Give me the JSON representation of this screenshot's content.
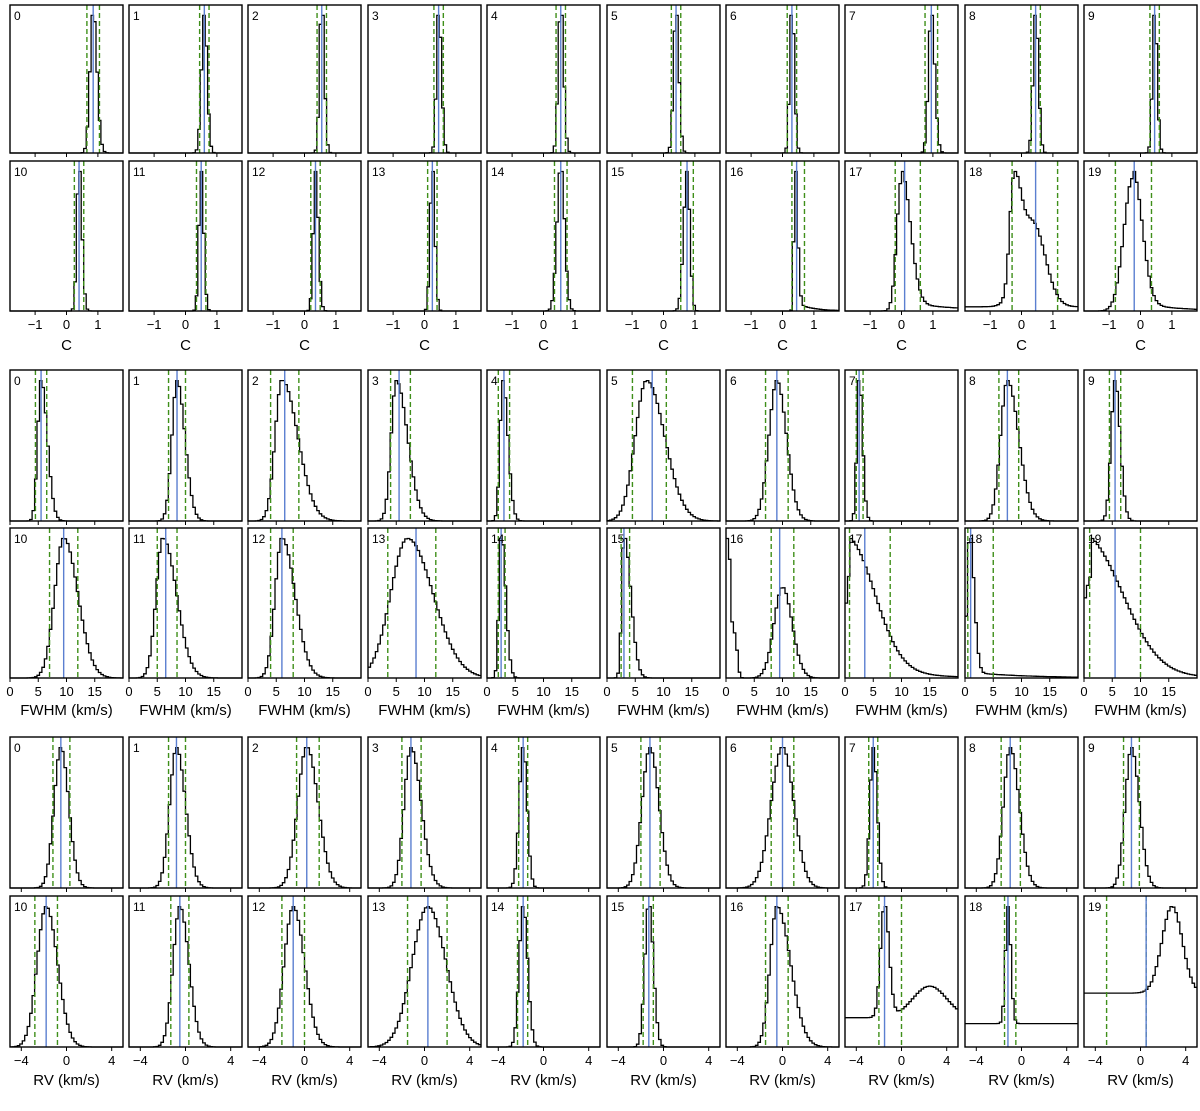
{
  "chart_data": [
    {
      "type": "histogram-grid",
      "xlabel": "C",
      "xlim": [
        -1.8,
        1.8
      ],
      "xticks": [
        -1,
        0,
        1
      ],
      "xtick_labels": [
        "−1",
        "0",
        "1"
      ],
      "shape_params": [
        [
          0.85,
          0.1,
          0.12,
          0,
          0
        ],
        [
          0.6,
          0.09,
          0.09,
          0,
          0
        ],
        [
          0.55,
          0.07,
          0.08,
          0,
          0
        ],
        [
          0.45,
          0.07,
          0.09,
          0,
          0
        ],
        [
          0.55,
          0.08,
          0.09,
          0,
          0
        ],
        [
          0.4,
          0.08,
          0.09,
          0,
          0
        ],
        [
          0.3,
          0.07,
          0.08,
          0,
          0
        ],
        [
          0.95,
          0.09,
          0.11,
          0,
          0
        ],
        [
          0.45,
          0.08,
          0.09,
          0,
          0
        ],
        [
          0.45,
          0.07,
          0.08,
          0,
          0
        ],
        [
          0.4,
          0.07,
          0.09,
          0,
          0
        ],
        [
          0.5,
          0.07,
          0.08,
          0,
          0
        ],
        [
          0.35,
          0.07,
          0.09,
          0,
          0
        ],
        [
          0.25,
          0.07,
          0.08,
          0,
          0
        ],
        [
          0.55,
          0.12,
          0.12,
          0,
          0
        ],
        [
          0.75,
          0.11,
          0.09,
          0,
          0
        ],
        [
          0.4,
          0.04,
          0.08,
          0.06,
          0.5
        ],
        [
          0,
          0.15,
          0.28,
          0.07,
          1.6
        ],
        [
          -0.25,
          0.13,
          0.22,
          0,
          0,
          0.8,
          0.35,
          0.4,
          0.04,
          1.8
        ],
        [
          -0.25,
          0.28,
          0.3,
          0.07,
          1.2
        ]
      ],
      "panels": [
        {
          "label": "0",
          "median": 0.85,
          "lower": 0.65,
          "upper": 1.05
        },
        {
          "label": "1",
          "median": 0.6,
          "lower": 0.45,
          "upper": 0.75
        },
        {
          "label": "2",
          "median": 0.55,
          "lower": 0.4,
          "upper": 0.7
        },
        {
          "label": "3",
          "median": 0.45,
          "lower": 0.3,
          "upper": 0.6
        },
        {
          "label": "4",
          "median": 0.55,
          "lower": 0.4,
          "upper": 0.7
        },
        {
          "label": "5",
          "median": 0.4,
          "lower": 0.25,
          "upper": 0.55
        },
        {
          "label": "6",
          "median": 0.3,
          "lower": 0.15,
          "upper": 0.45
        },
        {
          "label": "7",
          "median": 0.95,
          "lower": 0.75,
          "upper": 1.15
        },
        {
          "label": "8",
          "median": 0.45,
          "lower": 0.3,
          "upper": 0.6
        },
        {
          "label": "9",
          "median": 0.45,
          "lower": 0.3,
          "upper": 0.6
        },
        {
          "label": "10",
          "median": 0.4,
          "lower": 0.25,
          "upper": 0.55
        },
        {
          "label": "11",
          "median": 0.5,
          "lower": 0.35,
          "upper": 0.65
        },
        {
          "label": "12",
          "median": 0.35,
          "lower": 0.2,
          "upper": 0.5
        },
        {
          "label": "13",
          "median": 0.25,
          "lower": 0.1,
          "upper": 0.4
        },
        {
          "label": "14",
          "median": 0.55,
          "lower": 0.35,
          "upper": 0.75
        },
        {
          "label": "15",
          "median": 0.75,
          "lower": 0.55,
          "upper": 0.95
        },
        {
          "label": "16",
          "median": 0.45,
          "lower": 0.3,
          "upper": 0.7
        },
        {
          "label": "17",
          "median": 0.1,
          "lower": -0.2,
          "upper": 0.6
        },
        {
          "label": "18",
          "median": 0.45,
          "lower": -0.3,
          "upper": 1.15
        },
        {
          "label": "19",
          "median": -0.2,
          "lower": -0.8,
          "upper": 0.35
        }
      ]
    },
    {
      "type": "histogram-grid",
      "xlabel": "FWHM (km/s)",
      "xlim": [
        0,
        20
      ],
      "xticks": [
        0,
        5,
        10,
        15
      ],
      "xtick_labels": [
        "0",
        "5",
        "10",
        "15"
      ],
      "shape_params": [
        [
          5.5,
          0.6,
          1.1,
          0,
          0
        ],
        [
          8.5,
          0.9,
          1.4,
          0,
          0
        ],
        [
          6,
          1.2,
          2.8,
          0,
          0
        ],
        [
          5,
          0.9,
          2.0,
          0,
          0
        ],
        [
          2.8,
          0.5,
          0.9,
          0,
          0
        ],
        [
          7,
          2.0,
          3.2,
          0,
          0
        ],
        [
          9,
          1.4,
          1.7,
          0,
          0
        ],
        [
          2.5,
          0.4,
          0.6,
          0,
          0
        ],
        [
          7.5,
          1.2,
          2.0,
          0,
          0
        ],
        [
          5.5,
          0.7,
          0.9,
          0,
          0
        ],
        [
          9.5,
          1.6,
          2.5,
          0,
          0
        ],
        [
          6,
          1.2,
          2.4,
          0,
          0
        ],
        [
          6,
          1.2,
          2.3,
          0,
          0
        ],
        [
          7,
          3.0,
          4.5,
          0,
          0
        ],
        [
          2.5,
          0.4,
          0.8,
          0,
          0
        ],
        [
          3,
          0.4,
          1.2,
          0,
          0
        ],
        [
          10,
          1.5,
          1.7,
          0,
          0,
          1.6,
          0.35,
          0.45,
          0,
          0,
          0.45
        ],
        [
          1.0,
          0.9,
          4.5,
          0.28,
          6
        ],
        [
          0.8,
          0.45,
          0.8,
          0.04,
          10
        ],
        [
          1.5,
          1.8,
          6,
          0.35,
          6
        ]
      ],
      "panels": [
        {
          "label": "0",
          "median": 5.5,
          "lower": 4.5,
          "upper": 6.5
        },
        {
          "label": "1",
          "median": 8.5,
          "lower": 7.0,
          "upper": 10.0
        },
        {
          "label": "2",
          "median": 6.5,
          "lower": 4.0,
          "upper": 9.0
        },
        {
          "label": "3",
          "median": 5.5,
          "lower": 4.0,
          "upper": 7.5
        },
        {
          "label": "4",
          "median": 3.0,
          "lower": 2.0,
          "upper": 4.0
        },
        {
          "label": "5",
          "median": 8.0,
          "lower": 4.5,
          "upper": 10.5
        },
        {
          "label": "6",
          "median": 9.0,
          "lower": 7.0,
          "upper": 11.0
        },
        {
          "label": "7",
          "median": 2.5,
          "lower": 2.0,
          "upper": 3.2
        },
        {
          "label": "8",
          "median": 7.5,
          "lower": 6.0,
          "upper": 9.5
        },
        {
          "label": "9",
          "median": 5.5,
          "lower": 4.5,
          "upper": 6.5
        },
        {
          "label": "10",
          "median": 9.5,
          "lower": 7.0,
          "upper": 12.0
        },
        {
          "label": "11",
          "median": 6.5,
          "lower": 5.0,
          "upper": 8.5
        },
        {
          "label": "12",
          "median": 6.0,
          "lower": 4.0,
          "upper": 8.0
        },
        {
          "label": "13",
          "median": 8.5,
          "lower": 3.5,
          "upper": 12.0
        },
        {
          "label": "14",
          "median": 2.5,
          "lower": 2.0,
          "upper": 3.2
        },
        {
          "label": "15",
          "median": 3.0,
          "lower": 2.5,
          "upper": 4.0
        },
        {
          "label": "16",
          "median": 9.5,
          "lower": 8.0,
          "upper": 12.0
        },
        {
          "label": "17",
          "median": 3.5,
          "lower": 0.8,
          "upper": 8.0
        },
        {
          "label": "18",
          "median": 1.0,
          "lower": 0.5,
          "upper": 5.0
        },
        {
          "label": "19",
          "median": 5.5,
          "lower": 1.0,
          "upper": 10.0
        }
      ]
    },
    {
      "type": "histogram-grid",
      "xlabel": "RV (km/s)",
      "xlim": [
        -5,
        5
      ],
      "xticks": [
        -4,
        0,
        4
      ],
      "xtick_labels": [
        "−4",
        "0",
        "4"
      ],
      "shape_params": [
        [
          -0.5,
          0.6,
          0.7,
          0,
          0
        ],
        [
          -0.8,
          0.6,
          0.8,
          0,
          0
        ],
        [
          0.2,
          0.8,
          1.0,
          0,
          0
        ],
        [
          -1.2,
          0.6,
          0.9,
          0,
          0
        ],
        [
          -1.8,
          0.35,
          0.35,
          0,
          0
        ],
        [
          -1.2,
          0.7,
          0.8,
          0,
          0
        ],
        [
          0,
          1.0,
          1.0,
          0,
          0
        ],
        [
          -2.5,
          0.3,
          0.35,
          0.01,
          0.2
        ],
        [
          -1,
          0.6,
          0.8,
          0,
          0
        ],
        [
          -0.8,
          0.55,
          0.7,
          0,
          0
        ],
        [
          -1.8,
          0.8,
          1.0,
          0,
          0
        ],
        [
          -0.5,
          0.6,
          0.8,
          0,
          0
        ],
        [
          -1,
          0.8,
          1.0,
          0,
          0
        ],
        [
          0.3,
          1.4,
          1.6,
          0,
          0
        ],
        [
          -1.8,
          0.35,
          0.4,
          0,
          0
        ],
        [
          -1.3,
          0.35,
          0.4,
          0,
          0
        ],
        [
          -0.5,
          0.6,
          1.2,
          0,
          0
        ],
        [
          -1.5,
          0.35,
          0.4,
          0.2,
          0,
          0.28,
          2.5,
          1.5,
          0.06,
          0
        ],
        [
          -1.2,
          0.22,
          0.25,
          0.15,
          0,
          0,
          0,
          0,
          0.05,
          0
        ],
        [
          2.8,
          0.9,
          0.9,
          0,
          0,
          0.6,
          0,
          0,
          0.62,
          0
        ]
      ],
      "panels": [
        {
          "label": "0",
          "median": -0.5,
          "lower": -1.2,
          "upper": 0.3
        },
        {
          "label": "1",
          "median": -0.8,
          "lower": -1.5,
          "upper": 0.0
        },
        {
          "label": "2",
          "median": 0.2,
          "lower": -0.7,
          "upper": 1.3
        },
        {
          "label": "3",
          "median": -1.2,
          "lower": -2.0,
          "upper": -0.3
        },
        {
          "label": "4",
          "median": -1.8,
          "lower": -2.2,
          "upper": -1.4
        },
        {
          "label": "5",
          "median": -1.2,
          "lower": -2.0,
          "upper": -0.3
        },
        {
          "label": "6",
          "median": 0.0,
          "lower": -1.0,
          "upper": 1.0
        },
        {
          "label": "7",
          "median": -2.5,
          "lower": -2.9,
          "upper": -2.1
        },
        {
          "label": "8",
          "median": -1.0,
          "lower": -1.8,
          "upper": -0.1
        },
        {
          "label": "9",
          "median": -0.8,
          "lower": -1.5,
          "upper": -0.1
        },
        {
          "label": "10",
          "median": -1.8,
          "lower": -2.8,
          "upper": -0.8
        },
        {
          "label": "11",
          "median": -0.5,
          "lower": -1.3,
          "upper": 0.3
        },
        {
          "label": "12",
          "median": -1.0,
          "lower": -2.0,
          "upper": 0.0
        },
        {
          "label": "13",
          "median": 0.3,
          "lower": -1.5,
          "upper": 2.0
        },
        {
          "label": "14",
          "median": -1.8,
          "lower": -2.3,
          "upper": -1.4
        },
        {
          "label": "15",
          "median": -1.3,
          "lower": -1.8,
          "upper": -0.9
        },
        {
          "label": "16",
          "median": -0.5,
          "lower": -1.5,
          "upper": 0.5
        },
        {
          "label": "17",
          "median": -1.5,
          "lower": -2.0,
          "upper": 0.0
        },
        {
          "label": "18",
          "median": -1.2,
          "lower": -1.5,
          "upper": -0.5
        },
        {
          "label": "19",
          "median": 0.5,
          "lower": -3.0,
          "upper": 0.5
        }
      ]
    }
  ],
  "colors": {
    "histogram": "#000000",
    "median_line": "#5b7fd0",
    "interval_line": "#3f8f1a",
    "axes": "#000000",
    "background": "#ffffff"
  }
}
